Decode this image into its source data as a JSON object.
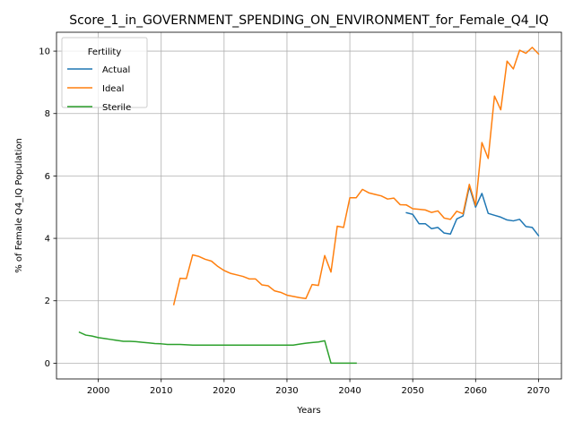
{
  "chart_data": {
    "type": "line",
    "title": "Score_1_in_GOVERNMENT_SPENDING_ON_ENVIRONMENT_for_Female_Q4_IQ",
    "xlabel": "Years",
    "ylabel": "% of Female Q4_IQ Population",
    "xlim": [
      1993.35,
      2073.65
    ],
    "ylim": [
      -0.505,
      10.605
    ],
    "xticks": [
      2000,
      2010,
      2020,
      2030,
      2040,
      2050,
      2060,
      2070
    ],
    "yticks": [
      0,
      2,
      4,
      6,
      8,
      10
    ],
    "grid": true,
    "legend": {
      "title": "Fertility",
      "placement": "top-left"
    },
    "series": [
      {
        "name": "Actual",
        "color": "#1f77b4",
        "points": [
          [
            2049,
            4.82
          ],
          [
            2050,
            4.77
          ],
          [
            2051,
            4.47
          ],
          [
            2052,
            4.47
          ],
          [
            2053,
            4.31
          ],
          [
            2054,
            4.35
          ],
          [
            2055,
            4.17
          ],
          [
            2056,
            4.14
          ],
          [
            2057,
            4.62
          ],
          [
            2058,
            4.72
          ],
          [
            2059,
            5.66
          ],
          [
            2060,
            5.0
          ],
          [
            2061,
            5.44
          ],
          [
            2062,
            4.8
          ],
          [
            2063,
            4.74
          ],
          [
            2064,
            4.68
          ],
          [
            2065,
            4.59
          ],
          [
            2066,
            4.56
          ],
          [
            2067,
            4.61
          ],
          [
            2068,
            4.38
          ],
          [
            2069,
            4.35
          ],
          [
            2070,
            4.09
          ]
        ]
      },
      {
        "name": "Ideal",
        "color": "#ff7f0e",
        "points": [
          [
            2012,
            1.88
          ],
          [
            2013,
            2.72
          ],
          [
            2014,
            2.71
          ],
          [
            2015,
            3.47
          ],
          [
            2016,
            3.42
          ],
          [
            2017,
            3.33
          ],
          [
            2018,
            3.27
          ],
          [
            2019,
            3.1
          ],
          [
            2020,
            2.97
          ],
          [
            2021,
            2.88
          ],
          [
            2022,
            2.83
          ],
          [
            2023,
            2.78
          ],
          [
            2024,
            2.7
          ],
          [
            2025,
            2.7
          ],
          [
            2026,
            2.51
          ],
          [
            2027,
            2.48
          ],
          [
            2028,
            2.32
          ],
          [
            2029,
            2.27
          ],
          [
            2030,
            2.18
          ],
          [
            2031,
            2.14
          ],
          [
            2032,
            2.1
          ],
          [
            2033,
            2.07
          ],
          [
            2034,
            2.52
          ],
          [
            2035,
            2.49
          ],
          [
            2036,
            3.45
          ],
          [
            2037,
            2.92
          ],
          [
            2038,
            4.39
          ],
          [
            2039,
            4.35
          ],
          [
            2040,
            5.3
          ],
          [
            2041,
            5.3
          ],
          [
            2042,
            5.57
          ],
          [
            2043,
            5.46
          ],
          [
            2044,
            5.41
          ],
          [
            2045,
            5.36
          ],
          [
            2046,
            5.26
          ],
          [
            2047,
            5.29
          ],
          [
            2048,
            5.08
          ],
          [
            2049,
            5.07
          ],
          [
            2050,
            4.95
          ],
          [
            2051,
            4.93
          ],
          [
            2052,
            4.91
          ],
          [
            2053,
            4.83
          ],
          [
            2054,
            4.88
          ],
          [
            2055,
            4.65
          ],
          [
            2056,
            4.61
          ],
          [
            2057,
            4.87
          ],
          [
            2058,
            4.79
          ],
          [
            2059,
            5.73
          ],
          [
            2060,
            5.06
          ],
          [
            2061,
            7.07
          ],
          [
            2062,
            6.56
          ],
          [
            2063,
            8.56
          ],
          [
            2064,
            8.12
          ],
          [
            2065,
            9.68
          ],
          [
            2066,
            9.43
          ],
          [
            2067,
            10.03
          ],
          [
            2068,
            9.93
          ],
          [
            2069,
            10.12
          ],
          [
            2070,
            9.91
          ]
        ]
      },
      {
        "name": "Sterile",
        "color": "#2ca02c",
        "points": [
          [
            1997,
            0.99
          ],
          [
            1998,
            0.9
          ],
          [
            1999,
            0.87
          ],
          [
            2000,
            0.82
          ],
          [
            2001,
            0.79
          ],
          [
            2002,
            0.76
          ],
          [
            2003,
            0.73
          ],
          [
            2004,
            0.7
          ],
          [
            2005,
            0.7
          ],
          [
            2006,
            0.69
          ],
          [
            2007,
            0.67
          ],
          [
            2008,
            0.65
          ],
          [
            2009,
            0.63
          ],
          [
            2010,
            0.62
          ],
          [
            2011,
            0.6
          ],
          [
            2012,
            0.6
          ],
          [
            2013,
            0.6
          ],
          [
            2014,
            0.59
          ],
          [
            2015,
            0.58
          ],
          [
            2016,
            0.58
          ],
          [
            2017,
            0.58
          ],
          [
            2018,
            0.58
          ],
          [
            2019,
            0.58
          ],
          [
            2020,
            0.58
          ],
          [
            2021,
            0.58
          ],
          [
            2022,
            0.58
          ],
          [
            2023,
            0.58
          ],
          [
            2024,
            0.58
          ],
          [
            2025,
            0.58
          ],
          [
            2026,
            0.58
          ],
          [
            2027,
            0.58
          ],
          [
            2028,
            0.58
          ],
          [
            2029,
            0.58
          ],
          [
            2030,
            0.58
          ],
          [
            2031,
            0.58
          ],
          [
            2032,
            0.61
          ],
          [
            2033,
            0.64
          ],
          [
            2034,
            0.66
          ],
          [
            2035,
            0.68
          ],
          [
            2036,
            0.72
          ],
          [
            2037,
            0.0
          ],
          [
            2038,
            0.0
          ],
          [
            2039,
            0.0
          ],
          [
            2040,
            0.0
          ],
          [
            2041,
            0.0
          ]
        ]
      }
    ]
  }
}
